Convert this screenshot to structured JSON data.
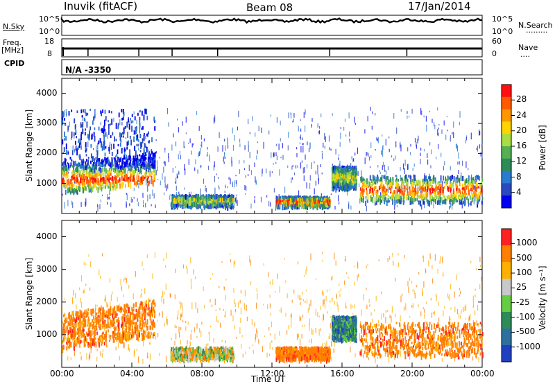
{
  "header": {
    "station": "Inuvik (fitACF)",
    "beam": "Beam 08",
    "date": "17/Jan/2014"
  },
  "top_panels": {
    "nsky_label": "N.Sky",
    "nsearch_label": "N.Search",
    "nsearch_dots": ".........",
    "freq_label": "Freq.",
    "freq_unit": "[MHz]",
    "nave_label": "Nave",
    "nave_dots": "....",
    "cpid_label": "CPID",
    "cpid_value": "N/A -3350",
    "nsky_ticks": [
      "10^5",
      "10^0"
    ],
    "nsearch_ticks": [
      "10^5",
      "10^0"
    ],
    "freq_ticks": [
      "18",
      "8"
    ],
    "nave_ticks": [
      "60",
      "0"
    ]
  },
  "chart_data": [
    {
      "type": "heatmap",
      "name": "power",
      "ylabel": "Slant Range [km]",
      "ylim": [
        0,
        4500
      ],
      "yticks": [
        "4000",
        "3000",
        "2000",
        "1000"
      ],
      "xlim": [
        0,
        24
      ],
      "colorbar": {
        "label": "Power [dB]",
        "ticks": [
          "28",
          "24",
          "20",
          "16",
          "12",
          "8",
          "4"
        ],
        "colors": [
          "#0000ee",
          "#2a48c0",
          "#2a7ad0",
          "#2e8b57",
          "#55b055",
          "#aadd44",
          "#ffd400",
          "#ff9800",
          "#ff5a00",
          "#ff1010"
        ]
      },
      "echo_regions": [
        {
          "t0": 0.0,
          "t1": 5.3,
          "r0": 700,
          "r1": 1700,
          "level": "high"
        },
        {
          "t0": 0.0,
          "t1": 5.3,
          "r0": 1500,
          "r1": 3500,
          "level": "sparse"
        },
        {
          "t0": 6.2,
          "t1": 9.8,
          "r0": 300,
          "r1": 650,
          "level": "mid"
        },
        {
          "t0": 12.2,
          "t1": 15.3,
          "r0": 300,
          "r1": 600,
          "level": "high"
        },
        {
          "t0": 15.4,
          "t1": 16.8,
          "r0": 900,
          "r1": 1600,
          "level": "mid"
        },
        {
          "t0": 17.0,
          "t1": 24.0,
          "r0": 400,
          "r1": 1300,
          "level": "high"
        }
      ]
    },
    {
      "type": "heatmap",
      "name": "velocity",
      "ylabel": "Slant Range [km]",
      "xlabel": "Time UT",
      "ylim": [
        0,
        4500
      ],
      "yticks": [
        "4000",
        "3000",
        "2000",
        "1000"
      ],
      "xlim": [
        0,
        24
      ],
      "xticks": [
        "00:00",
        "04:00",
        "08:00",
        "12:00",
        "16:00",
        "20:00",
        "00:00"
      ],
      "colorbar": {
        "label": "Velocity [m s⁻¹]",
        "ticks": [
          "1000",
          "500",
          "100",
          "25",
          "-25",
          "-100",
          "-500",
          "-1000"
        ],
        "colors": [
          "#2040c0",
          "#2e6f9e",
          "#2e8b57",
          "#66cc44",
          "#c8c8c8",
          "#ffb000",
          "#ff8000",
          "#ff2020"
        ]
      },
      "echo_regions": [
        {
          "t0": 0.0,
          "t1": 5.3,
          "r0": 600,
          "r1": 1700,
          "level": "away"
        },
        {
          "t0": 6.2,
          "t1": 9.8,
          "r0": 300,
          "r1": 650,
          "level": "mixed"
        },
        {
          "t0": 12.2,
          "t1": 15.3,
          "r0": 300,
          "r1": 650,
          "level": "away"
        },
        {
          "t0": 15.4,
          "t1": 16.8,
          "r0": 900,
          "r1": 1600,
          "level": "toward"
        },
        {
          "t0": 17.0,
          "t1": 24.0,
          "r0": 400,
          "r1": 1400,
          "level": "away"
        }
      ]
    }
  ]
}
